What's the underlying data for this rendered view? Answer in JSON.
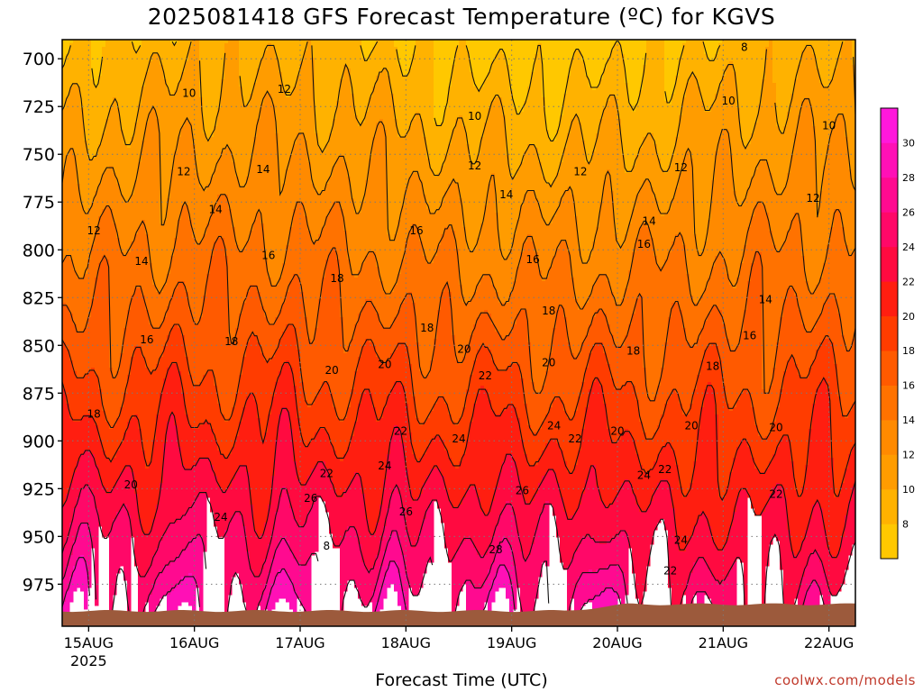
{
  "title": "2025081418 GFS Forecast Temperature (ºC) for KGVS",
  "credit": "coolwx.com/models",
  "colors": {
    "frame": "#000000",
    "ground": "#9c5a3c",
    "grid": "#7a7a7a",
    "contour": "#111111",
    "bands": [
      "#ffc800",
      "#ffb200",
      "#ff9c00",
      "#ff8a00",
      "#ff7200",
      "#ff5a00",
      "#ff3c00",
      "#ff1e10",
      "#ff0a40",
      "#ff0868",
      "#ff0a90",
      "#ff10b6",
      "#ff18dc"
    ]
  },
  "chart_data": {
    "type": "heatmap",
    "title": "2025081418 GFS Forecast Temperature (ºC) for KGVS",
    "xlabel": "Forecast Time (UTC)",
    "ylabel": "",
    "x_ticks": [
      {
        "label": "15AUG",
        "sublabel": "2025",
        "day": 15
      },
      {
        "label": "16AUG",
        "sublabel": "",
        "day": 16
      },
      {
        "label": "17AUG",
        "sublabel": "",
        "day": 17
      },
      {
        "label": "18AUG",
        "sublabel": "",
        "day": 18
      },
      {
        "label": "19AUG",
        "sublabel": "",
        "day": 19
      },
      {
        "label": "20AUG",
        "sublabel": "",
        "day": 20
      },
      {
        "label": "21AUG",
        "sublabel": "",
        "day": 21
      },
      {
        "label": "22AUG",
        "sublabel": "",
        "day": 22
      }
    ],
    "xlim": [
      14.75,
      22.25
    ],
    "y_ticks": [
      700,
      725,
      750,
      775,
      800,
      825,
      850,
      875,
      900,
      925,
      950,
      975
    ],
    "ylim": [
      690,
      997
    ],
    "y_inverted": true,
    "colorbar": {
      "ticks": [
        8,
        10,
        12,
        14,
        16,
        18,
        20,
        22,
        24,
        26,
        28,
        30
      ],
      "range": [
        6,
        32
      ]
    },
    "grid": true,
    "contour_levels": [
      8,
      10,
      12,
      14,
      16,
      18,
      20,
      22,
      24,
      26,
      28
    ],
    "contour_labels": [
      {
        "value": "8",
        "day": 21.2,
        "p": 694
      },
      {
        "value": "10",
        "day": 15.95,
        "p": 718
      },
      {
        "value": "10",
        "day": 18.65,
        "p": 730
      },
      {
        "value": "10",
        "day": 21.05,
        "p": 722
      },
      {
        "value": "10",
        "day": 22.0,
        "p": 735
      },
      {
        "value": "12",
        "day": 16.85,
        "p": 716
      },
      {
        "value": "12",
        "day": 15.9,
        "p": 759
      },
      {
        "value": "12",
        "day": 18.65,
        "p": 756
      },
      {
        "value": "12",
        "day": 19.65,
        "p": 759
      },
      {
        "value": "12",
        "day": 20.6,
        "p": 757
      },
      {
        "value": "12",
        "day": 21.85,
        "p": 773
      },
      {
        "value": "12",
        "day": 15.05,
        "p": 790
      },
      {
        "value": "14",
        "day": 16.65,
        "p": 758
      },
      {
        "value": "14",
        "day": 16.2,
        "p": 779
      },
      {
        "value": "14",
        "day": 15.5,
        "p": 806
      },
      {
        "value": "14",
        "day": 18.95,
        "p": 771
      },
      {
        "value": "14",
        "day": 20.3,
        "p": 785
      },
      {
        "value": "14",
        "day": 21.4,
        "p": 826
      },
      {
        "value": "16",
        "day": 16.7,
        "p": 803
      },
      {
        "value": "16",
        "day": 18.1,
        "p": 790
      },
      {
        "value": "16",
        "day": 19.2,
        "p": 805
      },
      {
        "value": "16",
        "day": 20.25,
        "p": 797
      },
      {
        "value": "16",
        "day": 21.25,
        "p": 845
      },
      {
        "value": "16",
        "day": 15.55,
        "p": 847
      },
      {
        "value": "18",
        "day": 17.35,
        "p": 815
      },
      {
        "value": "18",
        "day": 18.2,
        "p": 841
      },
      {
        "value": "18",
        "day": 19.35,
        "p": 832
      },
      {
        "value": "18",
        "day": 20.15,
        "p": 853
      },
      {
        "value": "18",
        "day": 16.35,
        "p": 848
      },
      {
        "value": "18",
        "day": 20.9,
        "p": 861
      },
      {
        "value": "18",
        "day": 15.05,
        "p": 886
      },
      {
        "value": "20",
        "day": 17.3,
        "p": 863
      },
      {
        "value": "20",
        "day": 17.8,
        "p": 860
      },
      {
        "value": "20",
        "day": 18.55,
        "p": 852
      },
      {
        "value": "20",
        "day": 19.35,
        "p": 859
      },
      {
        "value": "20",
        "day": 20.0,
        "p": 895
      },
      {
        "value": "20",
        "day": 20.7,
        "p": 892
      },
      {
        "value": "20",
        "day": 21.5,
        "p": 893
      },
      {
        "value": "20",
        "day": 15.4,
        "p": 923
      },
      {
        "value": "22",
        "day": 17.25,
        "p": 917
      },
      {
        "value": "22",
        "day": 17.95,
        "p": 895
      },
      {
        "value": "22",
        "day": 18.75,
        "p": 866
      },
      {
        "value": "22",
        "day": 19.6,
        "p": 899
      },
      {
        "value": "22",
        "day": 20.45,
        "p": 915
      },
      {
        "value": "22",
        "day": 21.5,
        "p": 928
      },
      {
        "value": "22",
        "day": 20.5,
        "p": 968
      },
      {
        "value": "24",
        "day": 16.25,
        "p": 940
      },
      {
        "value": "24",
        "day": 17.8,
        "p": 913
      },
      {
        "value": "24",
        "day": 18.5,
        "p": 899
      },
      {
        "value": "24",
        "day": 19.4,
        "p": 892
      },
      {
        "value": "24",
        "day": 20.25,
        "p": 918
      },
      {
        "value": "24",
        "day": 20.6,
        "p": 952
      },
      {
        "value": "26",
        "day": 17.1,
        "p": 930
      },
      {
        "value": "26",
        "day": 18.0,
        "p": 937
      },
      {
        "value": "26",
        "day": 19.1,
        "p": 926
      },
      {
        "value": "8",
        "day": 17.25,
        "p": 955
      },
      {
        "value": "28",
        "day": 18.85,
        "p": 957
      }
    ]
  }
}
